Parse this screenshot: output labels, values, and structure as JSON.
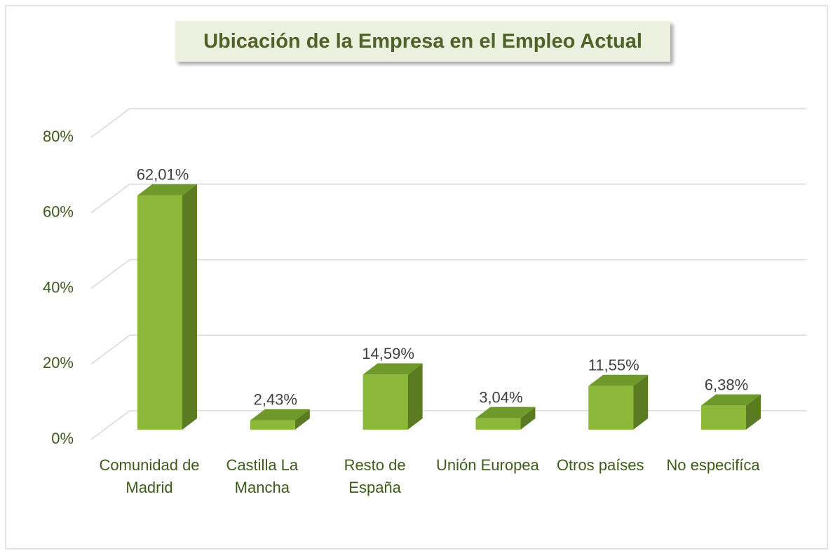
{
  "chart_data": {
    "type": "bar3d",
    "title": "Ubicación de la Empresa en el Empleo Actual",
    "categories": [
      "Comunidad de Madrid",
      "Castilla La Mancha",
      "Resto de España",
      "Unión Europea",
      "Otros países",
      "No especifíca"
    ],
    "values": [
      62.01,
      2.43,
      14.59,
      3.04,
      11.55,
      6.38
    ],
    "value_labels": [
      "62,01%",
      "2,43%",
      "14,59%",
      "3,04%",
      "11,55%",
      "6,38%"
    ],
    "color": "#8cb83a",
    "ylim": [
      0,
      80
    ],
    "yticks": [
      {
        "value": 0,
        "label": "0%"
      },
      {
        "value": 20,
        "label": "20%"
      },
      {
        "value": 40,
        "label": "40%"
      },
      {
        "value": 60,
        "label": "60%"
      },
      {
        "value": 80,
        "label": "80%"
      }
    ],
    "grid": true
  }
}
